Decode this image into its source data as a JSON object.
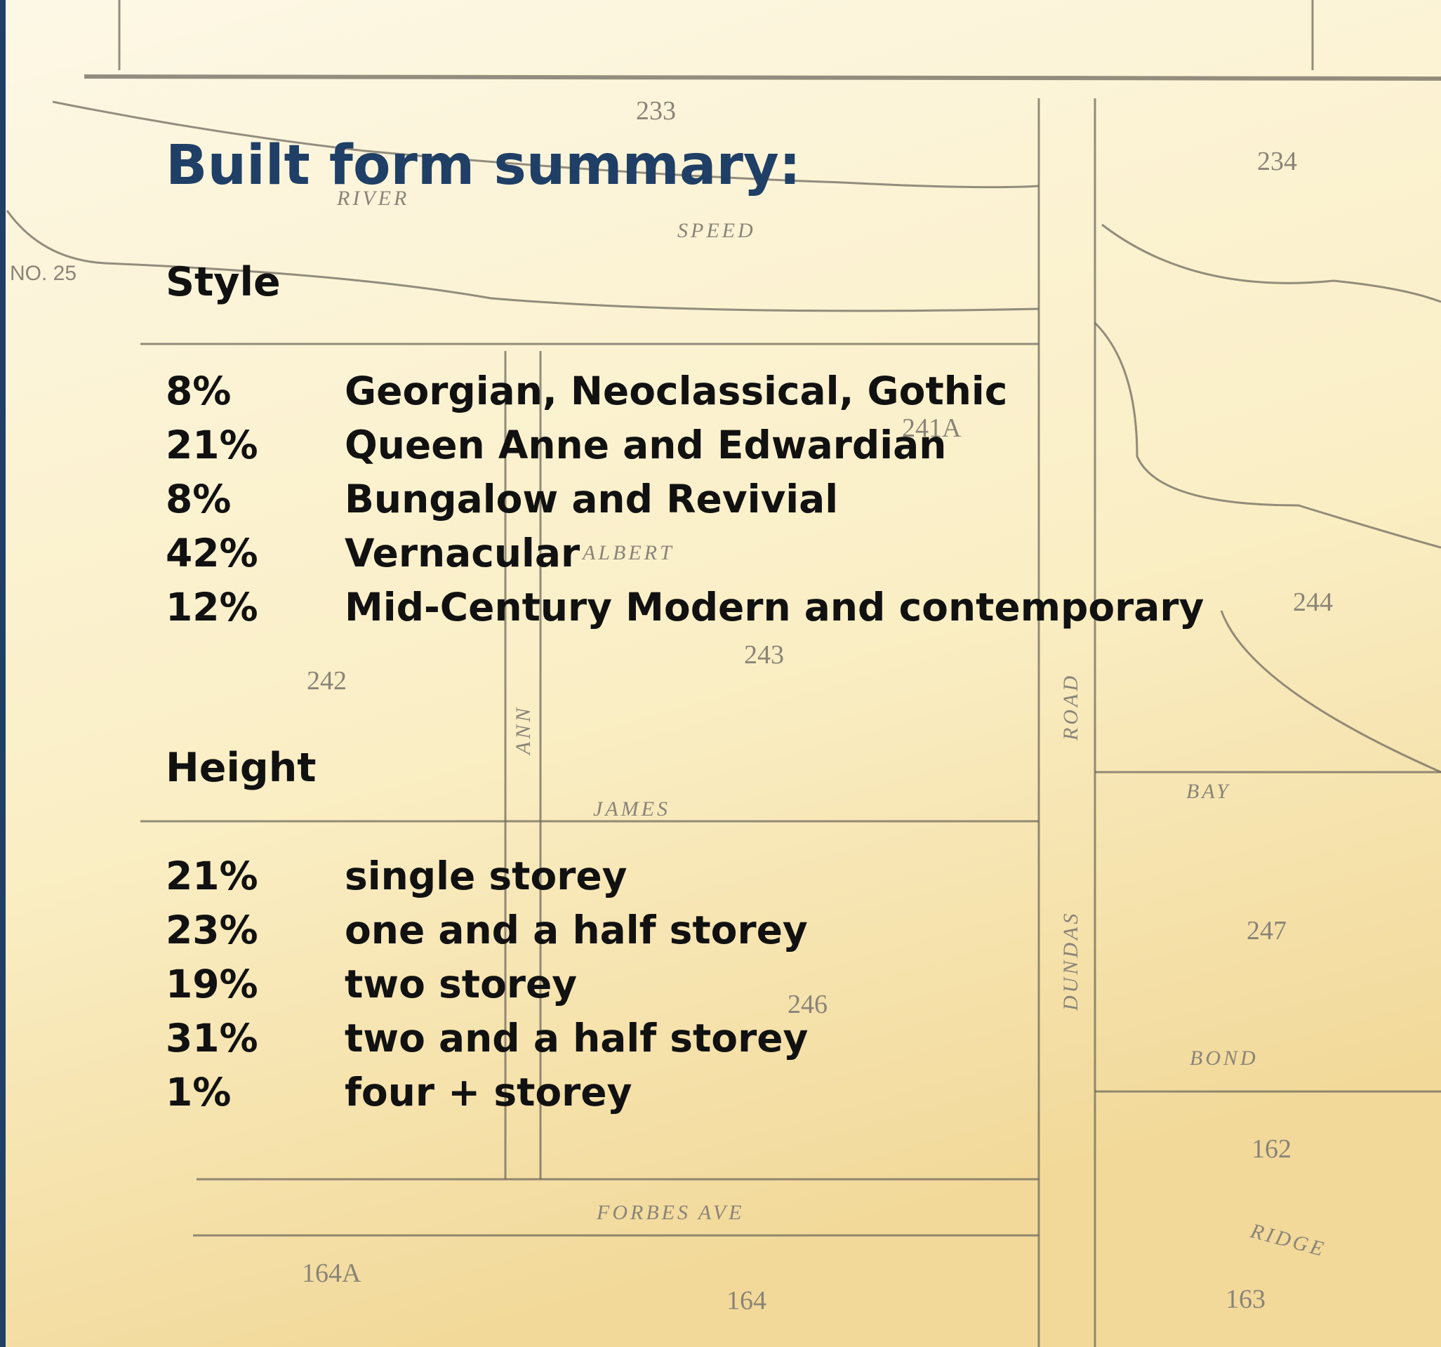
{
  "title": "Built form summary:",
  "sections": [
    {
      "heading": "Style",
      "rows": [
        {
          "percent": "8%",
          "label": "Georgian, Neoclassical, Gothic"
        },
        {
          "percent": "21%",
          "label": "Queen Anne and Edwardian"
        },
        {
          "percent": "8%",
          "label": "Bungalow and Revivial"
        },
        {
          "percent": "42%",
          "label": "Vernacular"
        },
        {
          "percent": "12%",
          "label": "Mid-Century Modern and contemporary"
        }
      ]
    },
    {
      "heading": "Height",
      "rows": [
        {
          "percent": "21%",
          "label": "single storey"
        },
        {
          "percent": "23%",
          "label": "one and a half storey"
        },
        {
          "percent": "19%",
          "label": "two storey"
        },
        {
          "percent": "31%",
          "label": "two and a half storey"
        },
        {
          "percent": "1%",
          "label": "four + storey"
        }
      ]
    }
  ],
  "map": {
    "labels": [
      "233",
      "234",
      "NO. 25",
      "RIVER",
      "SPEED",
      "241A",
      "242",
      "243",
      "244",
      "ALBERT",
      "JAMES",
      "ANN",
      "ROAD",
      "DUNDAS",
      "BAY",
      "246",
      "247",
      "BOND",
      "162",
      "FORBES AVE",
      "RIDGE",
      "164A",
      "164",
      "163"
    ]
  }
}
